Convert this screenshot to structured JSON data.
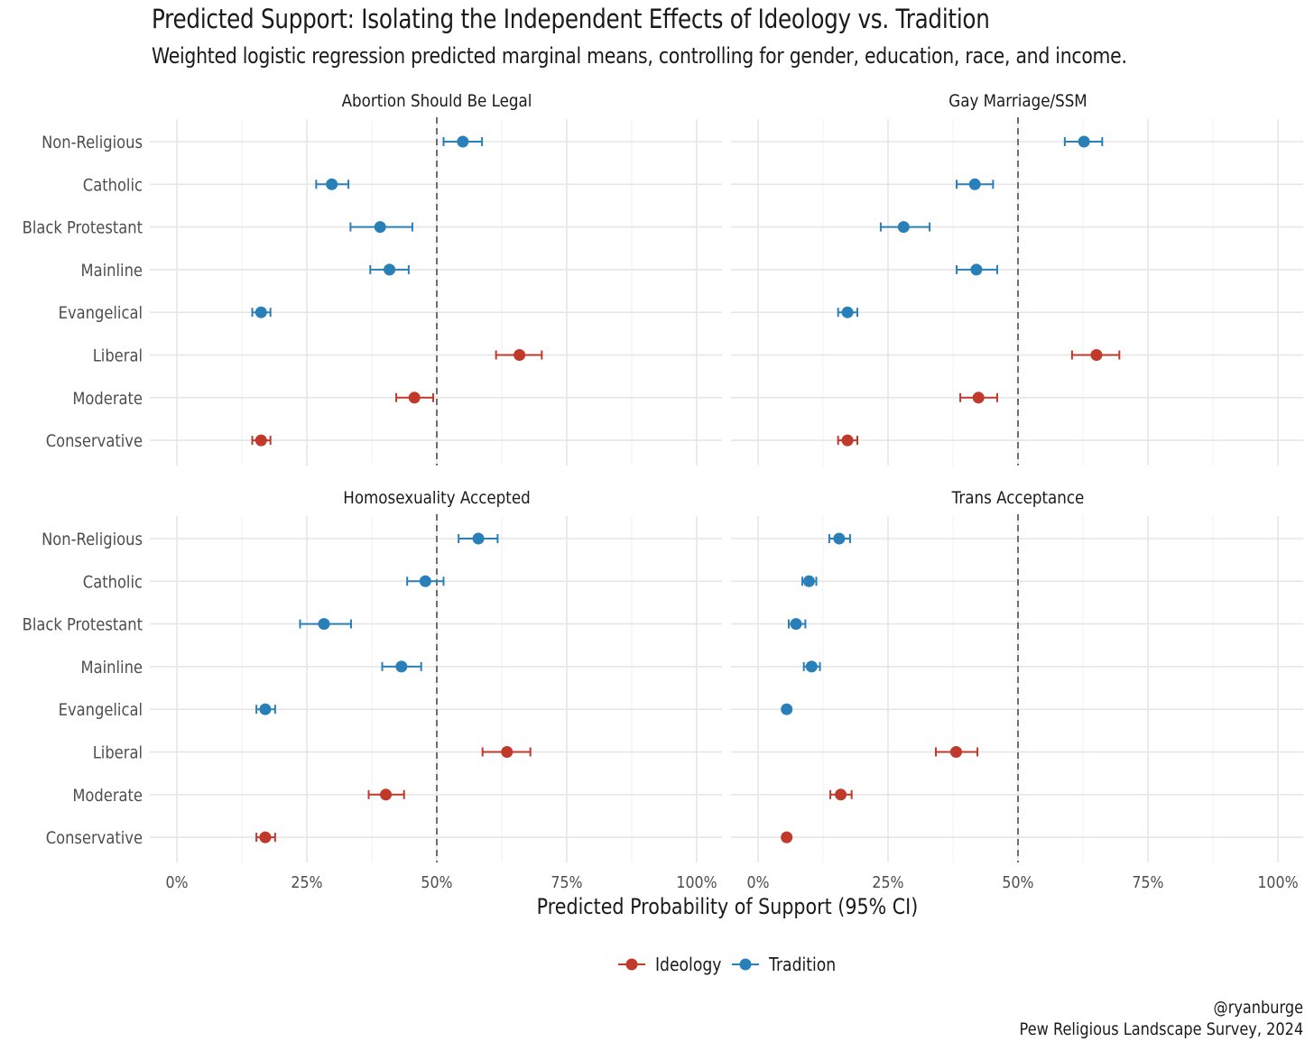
{
  "chart_data": {
    "type": "scatter",
    "title": "Predicted Support: Isolating the Independent Effects of Ideology vs. Tradition",
    "subtitle": "Weighted logistic regression predicted marginal means, controlling for gender, education, race, and income.",
    "xlabel": "Predicted Probability of Support (95% CI)",
    "xlim": [
      0,
      1
    ],
    "x_ticks": [
      "0%",
      "25%",
      "50%",
      "75%",
      "100%"
    ],
    "reference_line": 0.5,
    "categories": [
      "Non-Religious",
      "Catholic",
      "Black Protestant",
      "Mainline",
      "Evangelical",
      "Liberal",
      "Moderate",
      "Conservative"
    ],
    "legend": {
      "position": "bottom",
      "entries": [
        {
          "name": "Ideology",
          "color": "#c0392b"
        },
        {
          "name": "Tradition",
          "color": "#2980b9"
        }
      ]
    },
    "panels": [
      {
        "title": "Abortion Should Be Legal",
        "points": [
          {
            "label": "Non-Religious",
            "group": "Tradition",
            "value": 0.55,
            "lower": 0.513,
            "upper": 0.587
          },
          {
            "label": "Catholic",
            "group": "Tradition",
            "value": 0.298,
            "lower": 0.268,
            "upper": 0.33
          },
          {
            "label": "Black Protestant",
            "group": "Tradition",
            "value": 0.391,
            "lower": 0.334,
            "upper": 0.453
          },
          {
            "label": "Mainline",
            "group": "Tradition",
            "value": 0.409,
            "lower": 0.372,
            "upper": 0.446
          },
          {
            "label": "Evangelical",
            "group": "Tradition",
            "value": 0.162,
            "lower": 0.145,
            "upper": 0.18
          },
          {
            "label": "Liberal",
            "group": "Ideology",
            "value": 0.659,
            "lower": 0.614,
            "upper": 0.702
          },
          {
            "label": "Moderate",
            "group": "Ideology",
            "value": 0.457,
            "lower": 0.422,
            "upper": 0.493
          },
          {
            "label": "Conservative",
            "group": "Ideology",
            "value": 0.162,
            "lower": 0.145,
            "upper": 0.18
          }
        ]
      },
      {
        "title": "Gay Marriage/SSM",
        "points": [
          {
            "label": "Non-Religious",
            "group": "Tradition",
            "value": 0.627,
            "lower": 0.59,
            "upper": 0.662
          },
          {
            "label": "Catholic",
            "group": "Tradition",
            "value": 0.417,
            "lower": 0.382,
            "upper": 0.452
          },
          {
            "label": "Black Protestant",
            "group": "Tradition",
            "value": 0.28,
            "lower": 0.236,
            "upper": 0.33
          },
          {
            "label": "Mainline",
            "group": "Tradition",
            "value": 0.42,
            "lower": 0.382,
            "upper": 0.46
          },
          {
            "label": "Evangelical",
            "group": "Tradition",
            "value": 0.172,
            "lower": 0.154,
            "upper": 0.191
          },
          {
            "label": "Liberal",
            "group": "Ideology",
            "value": 0.651,
            "lower": 0.604,
            "upper": 0.695
          },
          {
            "label": "Moderate",
            "group": "Ideology",
            "value": 0.424,
            "lower": 0.389,
            "upper": 0.46
          },
          {
            "label": "Conservative",
            "group": "Ideology",
            "value": 0.172,
            "lower": 0.154,
            "upper": 0.191
          }
        ]
      },
      {
        "title": "Homosexuality Accepted",
        "points": [
          {
            "label": "Non-Religious",
            "group": "Tradition",
            "value": 0.58,
            "lower": 0.542,
            "upper": 0.617
          },
          {
            "label": "Catholic",
            "group": "Tradition",
            "value": 0.478,
            "lower": 0.443,
            "upper": 0.513
          },
          {
            "label": "Black Protestant",
            "group": "Tradition",
            "value": 0.283,
            "lower": 0.237,
            "upper": 0.335
          },
          {
            "label": "Mainline",
            "group": "Tradition",
            "value": 0.432,
            "lower": 0.395,
            "upper": 0.47
          },
          {
            "label": "Evangelical",
            "group": "Tradition",
            "value": 0.17,
            "lower": 0.153,
            "upper": 0.189
          },
          {
            "label": "Liberal",
            "group": "Ideology",
            "value": 0.635,
            "lower": 0.588,
            "upper": 0.68
          },
          {
            "label": "Moderate",
            "group": "Ideology",
            "value": 0.402,
            "lower": 0.369,
            "upper": 0.437
          },
          {
            "label": "Conservative",
            "group": "Ideology",
            "value": 0.17,
            "lower": 0.153,
            "upper": 0.189
          }
        ]
      },
      {
        "title": "Trans Acceptance",
        "points": [
          {
            "label": "Non-Religious",
            "group": "Tradition",
            "value": 0.156,
            "lower": 0.137,
            "upper": 0.177
          },
          {
            "label": "Catholic",
            "group": "Tradition",
            "value": 0.098,
            "lower": 0.085,
            "upper": 0.112
          },
          {
            "label": "Black Protestant",
            "group": "Tradition",
            "value": 0.073,
            "lower": 0.059,
            "upper": 0.091
          },
          {
            "label": "Mainline",
            "group": "Tradition",
            "value": 0.103,
            "lower": 0.088,
            "upper": 0.119
          },
          {
            "label": "Evangelical",
            "group": "Tradition",
            "value": 0.055,
            "lower": 0.049,
            "upper": 0.061
          },
          {
            "label": "Liberal",
            "group": "Ideology",
            "value": 0.381,
            "lower": 0.342,
            "upper": 0.422
          },
          {
            "label": "Moderate",
            "group": "Ideology",
            "value": 0.159,
            "lower": 0.139,
            "upper": 0.18
          },
          {
            "label": "Conservative",
            "group": "Ideology",
            "value": 0.055,
            "lower": 0.049,
            "upper": 0.061
          }
        ]
      }
    ]
  },
  "caption": {
    "handle": "@ryanburge",
    "source": "Pew Religious Landscape Survey, 2024"
  }
}
